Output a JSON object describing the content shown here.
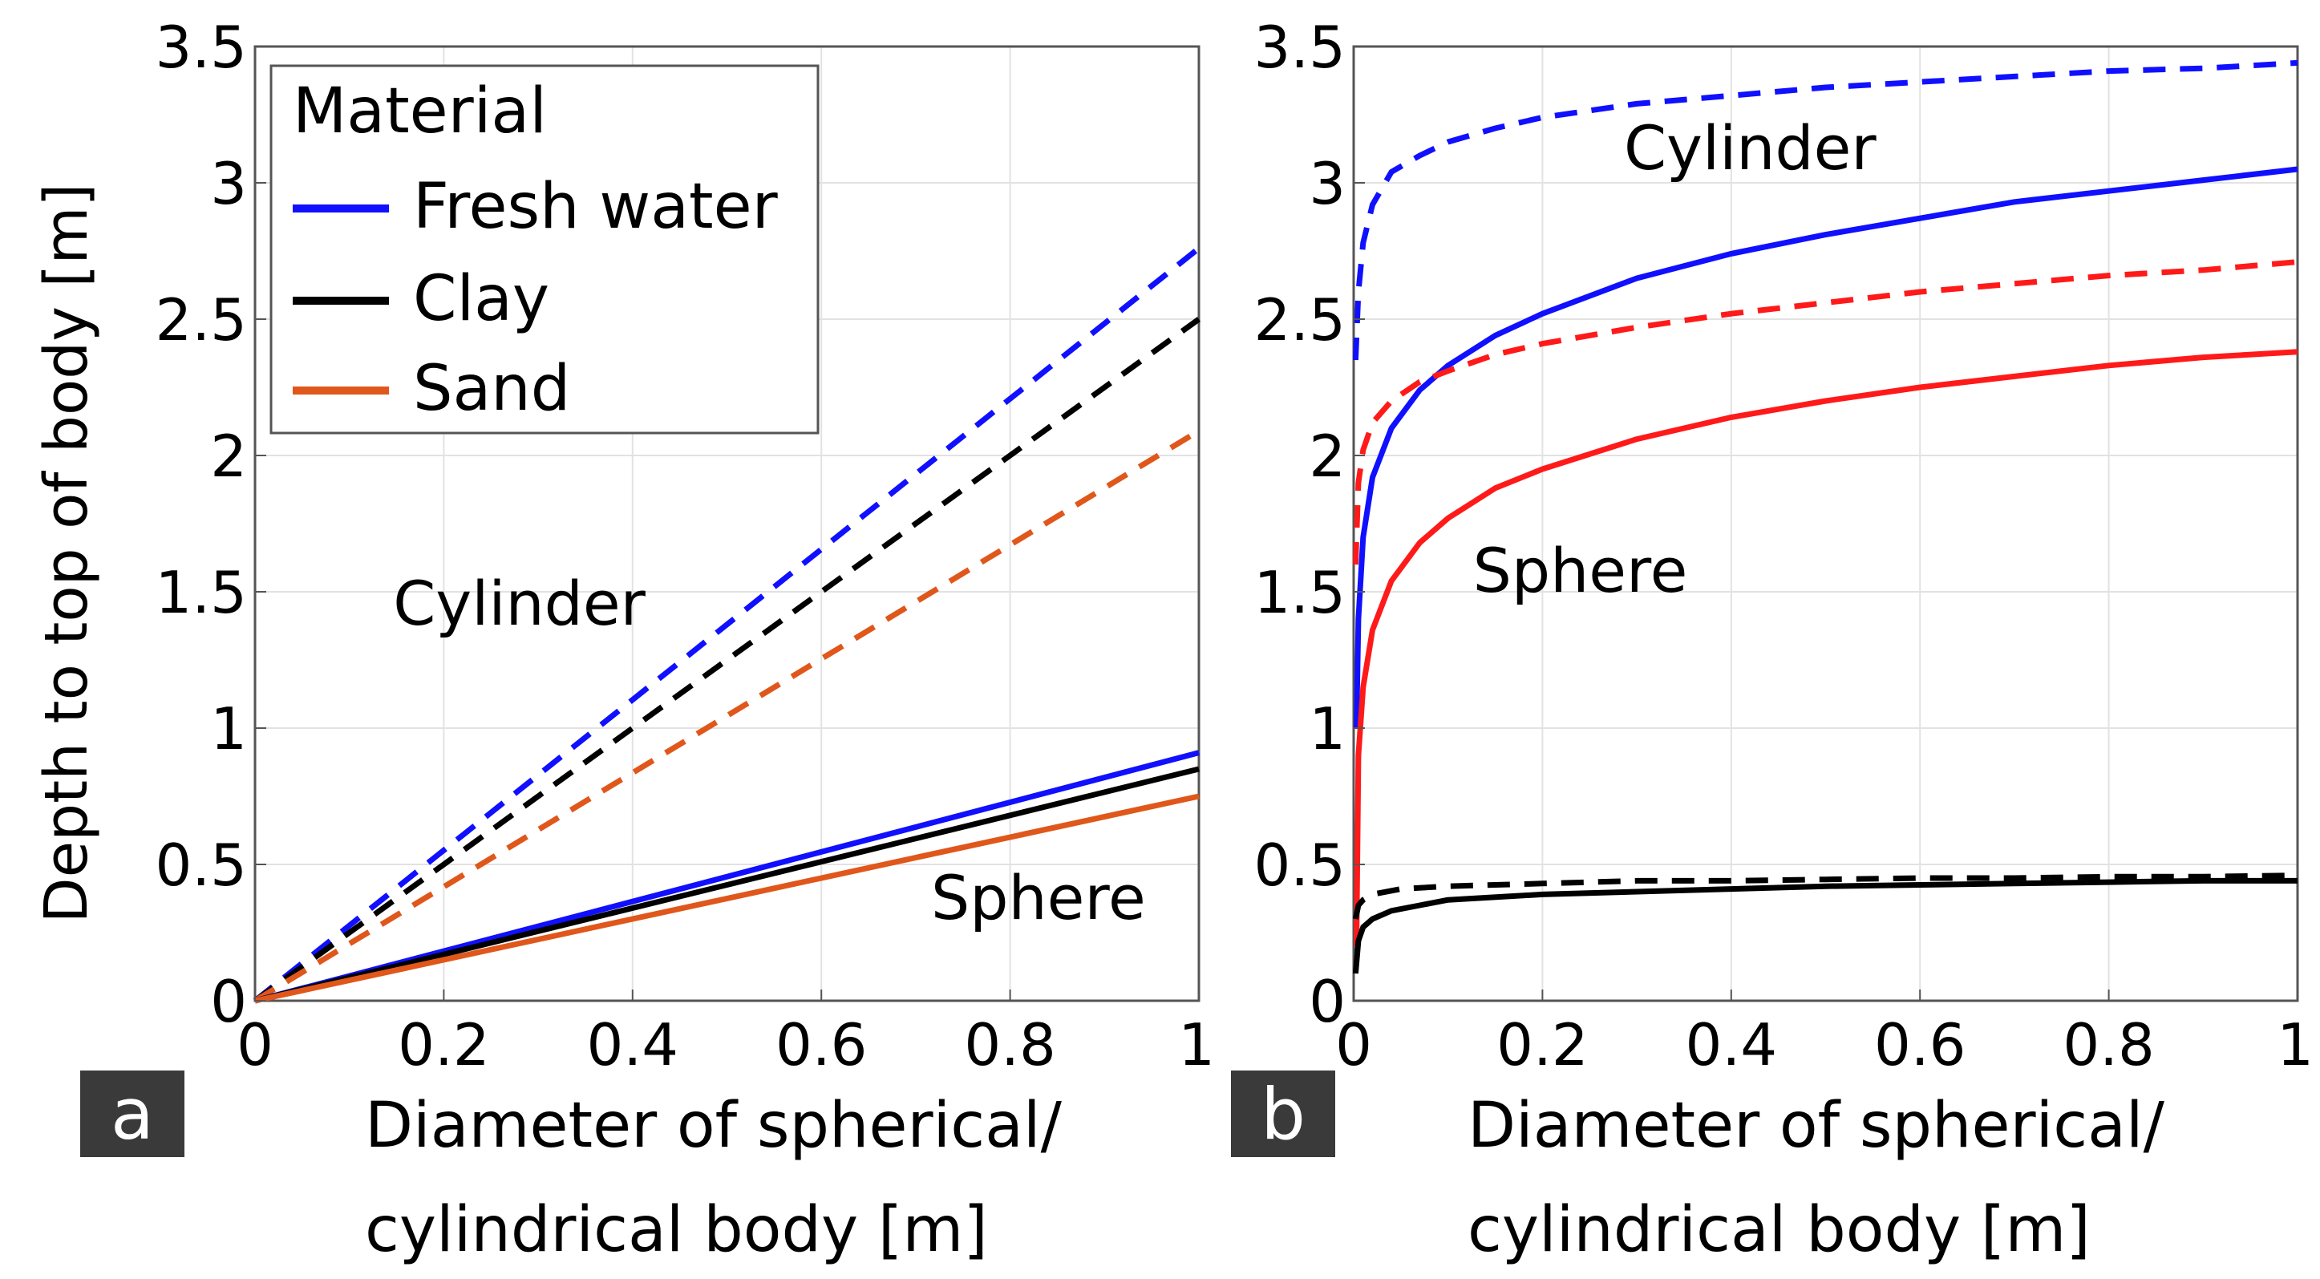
{
  "chart_data": [
    {
      "panel_label": "a",
      "type": "line",
      "xlabel_line1": "Diameter of spherical/",
      "xlabel_line2": "cylindrical body [m]",
      "ylabel": "Depth to top of body [m]",
      "xlim": [
        0,
        1
      ],
      "ylim": [
        0,
        3.5
      ],
      "xticks": [
        0,
        0.2,
        0.4,
        0.6,
        0.8,
        1
      ],
      "xtick_labels": [
        "0",
        "0.2",
        "0.4",
        "0.6",
        "0.8",
        "1"
      ],
      "yticks": [
        0,
        0.5,
        1,
        1.5,
        2,
        2.5,
        3,
        3.5
      ],
      "ytick_labels": [
        "0",
        "0.5",
        "1",
        "1.5",
        "2",
        "2.5",
        "3",
        "3.5"
      ],
      "grid": true,
      "legend": {
        "title": "Material",
        "placement": "top-left",
        "entries": [
          {
            "label": "Fresh water",
            "color": "#1010ff"
          },
          {
            "label": "Clay",
            "color": "#000000"
          },
          {
            "label": "Sand",
            "color": "#e0571b"
          }
        ]
      },
      "annotations": [
        {
          "text": "Cylinder",
          "x": 0.28,
          "y": 1.38
        },
        {
          "text": "Sphere",
          "x": 0.83,
          "y": 0.3
        }
      ],
      "series": [
        {
          "color": "#1010ff",
          "dash": true,
          "x": [
            0,
            1
          ],
          "y": [
            0,
            2.76
          ]
        },
        {
          "color": "#000000",
          "dash": true,
          "x": [
            0,
            1
          ],
          "y": [
            0,
            2.5
          ]
        },
        {
          "color": "#e0571b",
          "dash": true,
          "x": [
            0,
            1
          ],
          "y": [
            0,
            2.09
          ]
        },
        {
          "color": "#1010ff",
          "dash": false,
          "x": [
            0,
            1
          ],
          "y": [
            0,
            0.91
          ]
        },
        {
          "color": "#000000",
          "dash": false,
          "x": [
            0,
            1
          ],
          "y": [
            0,
            0.85
          ]
        },
        {
          "color": "#e0571b",
          "dash": false,
          "x": [
            0,
            1
          ],
          "y": [
            0,
            0.75
          ]
        }
      ]
    },
    {
      "panel_label": "b",
      "type": "line",
      "xlabel_line1": "Diameter of spherical/",
      "xlabel_line2": "cylindrical body [m]",
      "xlim": [
        0,
        1
      ],
      "ylim": [
        0,
        3.5
      ],
      "xticks": [
        0,
        0.2,
        0.4,
        0.6,
        0.8,
        1
      ],
      "xtick_labels": [
        "0",
        "0.2",
        "0.4",
        "0.6",
        "0.8",
        "1"
      ],
      "yticks": [
        0,
        0.5,
        1,
        1.5,
        2,
        2.5,
        3,
        3.5
      ],
      "ytick_labels": [
        "0",
        "0.5",
        "1",
        "1.5",
        "2",
        "2.5",
        "3",
        "3.5"
      ],
      "grid": true,
      "annotations": [
        {
          "text": "Cylinder",
          "x": 0.42,
          "y": 3.05
        },
        {
          "text": "Sphere",
          "x": 0.24,
          "y": 1.5
        }
      ],
      "series": [
        {
          "color": "#1010ff",
          "dash": true,
          "x": [
            0.002,
            0.005,
            0.01,
            0.02,
            0.04,
            0.07,
            0.1,
            0.15,
            0.2,
            0.3,
            0.4,
            0.5,
            0.6,
            0.7,
            0.8,
            0.9,
            1.0
          ],
          "y": [
            2.35,
            2.6,
            2.78,
            2.92,
            3.04,
            3.1,
            3.15,
            3.2,
            3.24,
            3.29,
            3.32,
            3.35,
            3.37,
            3.39,
            3.41,
            3.42,
            3.44
          ]
        },
        {
          "color": "#1010ff",
          "dash": false,
          "x": [
            0.003,
            0.005,
            0.01,
            0.02,
            0.04,
            0.07,
            0.1,
            0.15,
            0.2,
            0.3,
            0.4,
            0.5,
            0.6,
            0.7,
            0.8,
            0.9,
            1.0
          ],
          "y": [
            1.0,
            1.4,
            1.7,
            1.92,
            2.1,
            2.24,
            2.33,
            2.44,
            2.52,
            2.65,
            2.74,
            2.81,
            2.87,
            2.93,
            2.97,
            3.01,
            3.05
          ]
        },
        {
          "color": "#ff1a1a",
          "dash": true,
          "x": [
            0.002,
            0.005,
            0.01,
            0.02,
            0.04,
            0.07,
            0.1,
            0.15,
            0.2,
            0.3,
            0.4,
            0.5,
            0.6,
            0.7,
            0.8,
            0.9,
            1.0
          ],
          "y": [
            1.6,
            1.9,
            2.02,
            2.12,
            2.2,
            2.27,
            2.31,
            2.37,
            2.41,
            2.47,
            2.52,
            2.56,
            2.6,
            2.63,
            2.66,
            2.68,
            2.71
          ]
        },
        {
          "color": "#ff1a1a",
          "dash": false,
          "x": [
            0.003,
            0.005,
            0.01,
            0.02,
            0.04,
            0.07,
            0.1,
            0.15,
            0.2,
            0.3,
            0.4,
            0.5,
            0.6,
            0.7,
            0.8,
            0.9,
            1.0
          ],
          "y": [
            0.2,
            0.9,
            1.15,
            1.36,
            1.54,
            1.68,
            1.77,
            1.88,
            1.95,
            2.06,
            2.14,
            2.2,
            2.25,
            2.29,
            2.33,
            2.36,
            2.38
          ]
        },
        {
          "color": "#000000",
          "dash": true,
          "x": [
            0.002,
            0.005,
            0.01,
            0.02,
            0.05,
            0.1,
            0.2,
            0.3,
            0.4,
            0.5,
            0.6,
            0.7,
            0.8,
            0.9,
            1.0
          ],
          "y": [
            0.3,
            0.35,
            0.37,
            0.39,
            0.41,
            0.42,
            0.43,
            0.44,
            0.44,
            0.445,
            0.45,
            0.45,
            0.455,
            0.455,
            0.46
          ]
        },
        {
          "color": "#000000",
          "dash": false,
          "x": [
            0.002,
            0.005,
            0.01,
            0.02,
            0.04,
            0.07,
            0.1,
            0.2,
            0.3,
            0.4,
            0.5,
            0.6,
            0.7,
            0.8,
            0.9,
            1.0
          ],
          "y": [
            0.1,
            0.22,
            0.27,
            0.3,
            0.33,
            0.35,
            0.37,
            0.39,
            0.4,
            0.41,
            0.42,
            0.425,
            0.43,
            0.435,
            0.44,
            0.44
          ]
        }
      ]
    }
  ]
}
